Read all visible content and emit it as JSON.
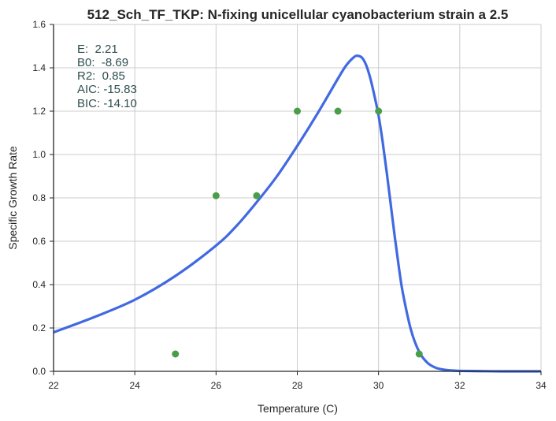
{
  "chart_data": {
    "type": "scatter",
    "title": "512_Sch_TF_TKP: N-fixing unicellular cyanobacterium strain a 2.5",
    "xlabel": "Temperature (C)",
    "ylabel": "Specific Growth Rate",
    "xlim": [
      22,
      34
    ],
    "ylim": [
      0,
      1.6
    ],
    "xticks": [
      22,
      24,
      26,
      28,
      30,
      32,
      34
    ],
    "yticks": [
      0.0,
      0.2,
      0.4,
      0.6,
      0.8,
      1.0,
      1.2,
      1.4,
      1.6
    ],
    "xtick_labels": [
      "22",
      "24",
      "26",
      "28",
      "30",
      "32",
      "34"
    ],
    "ytick_labels": [
      "0.0",
      "0.2",
      "0.4",
      "0.6",
      "0.8",
      "1.0",
      "1.2",
      "1.4",
      "1.6"
    ],
    "grid": true,
    "points": {
      "x": [
        25,
        26,
        27,
        28,
        29,
        30,
        31
      ],
      "y": [
        0.08,
        0.81,
        0.81,
        1.2,
        1.2,
        1.2,
        0.08
      ],
      "color": "#4a9e4a"
    },
    "fit_line": {
      "x": [
        22.0,
        23.0,
        24.0,
        25.0,
        26.0,
        26.5,
        27.0,
        27.5,
        28.0,
        28.5,
        29.0,
        29.2,
        29.4,
        29.5,
        29.6,
        29.7,
        29.8,
        29.9,
        30.0,
        30.1,
        30.2,
        30.3,
        30.4,
        30.5,
        30.6,
        30.8,
        31.0,
        31.2,
        31.4,
        31.6,
        31.8,
        32.0,
        32.5,
        33.0,
        34.0
      ],
      "y": [
        0.18,
        0.25,
        0.33,
        0.44,
        0.58,
        0.67,
        0.78,
        0.9,
        1.04,
        1.19,
        1.35,
        1.41,
        1.45,
        1.455,
        1.445,
        1.41,
        1.35,
        1.27,
        1.18,
        1.06,
        0.92,
        0.77,
        0.62,
        0.48,
        0.36,
        0.19,
        0.09,
        0.04,
        0.017,
        0.008,
        0.004,
        0.002,
        0.001,
        0.0,
        0.0
      ],
      "color": "#4169e1"
    },
    "annotations": [
      "E:  2.21",
      "B0:  -8.69",
      "R2:  0.85",
      "AIC: -15.83",
      "BIC: -14.10"
    ]
  }
}
